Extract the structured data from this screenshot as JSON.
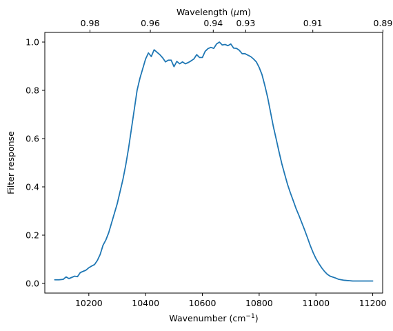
{
  "chart_data": {
    "type": "line",
    "xlabel": "Wavenumber (cm",
    "xlabel_sup": "−1",
    "xlabel_close": ")",
    "ylabel": "Filter response",
    "top_xlabel_pre": "Wavelength (",
    "top_xlabel_mu": "μ",
    "top_xlabel_post": "m)",
    "xlim": [
      10045,
      11235
    ],
    "ylim": [
      -0.04,
      1.04
    ],
    "xticks": [
      10200,
      10400,
      10600,
      10800,
      11000,
      11200
    ],
    "yticks": [
      0.0,
      0.2,
      0.4,
      0.6,
      0.8,
      1.0
    ],
    "top_xticks": [
      0.98,
      0.96,
      0.94,
      0.93,
      0.91,
      0.89
    ],
    "top_xtick_labels": [
      "0.98",
      "0.96",
      "0.94",
      "0.93",
      "0.91",
      "0.89"
    ],
    "line_color": "#1f77b4",
    "series": [
      {
        "x": [
          10080,
          10095,
          10110,
          10120,
          10130,
          10140,
          10150,
          10160,
          10170,
          10180,
          10190,
          10200,
          10210,
          10220,
          10230,
          10240,
          10250,
          10260,
          10270,
          10280,
          10290,
          10300,
          10310,
          10320,
          10330,
          10340,
          10350,
          10360,
          10370,
          10380,
          10390,
          10400,
          10410,
          10420,
          10430,
          10440,
          10450,
          10460,
          10470,
          10480,
          10490,
          10500,
          10510,
          10520,
          10530,
          10540,
          10550,
          10560,
          10570,
          10580,
          10590,
          10600,
          10610,
          10620,
          10630,
          10640,
          10650,
          10660,
          10670,
          10680,
          10690,
          10700,
          10710,
          10720,
          10730,
          10740,
          10750,
          10760,
          10770,
          10780,
          10790,
          10800,
          10810,
          10820,
          10830,
          10840,
          10850,
          10860,
          10870,
          10880,
          10890,
          10900,
          10910,
          10920,
          10930,
          10940,
          10950,
          10960,
          10970,
          10980,
          10990,
          11000,
          11010,
          11020,
          11030,
          11040,
          11050,
          11060,
          11070,
          11080,
          11090,
          11100,
          11110,
          11120,
          11130,
          11140,
          11150,
          11160,
          11180,
          11200
        ],
        "y": [
          0.015,
          0.015,
          0.017,
          0.027,
          0.02,
          0.025,
          0.03,
          0.028,
          0.045,
          0.05,
          0.055,
          0.065,
          0.072,
          0.078,
          0.095,
          0.12,
          0.158,
          0.18,
          0.21,
          0.25,
          0.29,
          0.33,
          0.38,
          0.43,
          0.49,
          0.56,
          0.64,
          0.72,
          0.8,
          0.85,
          0.89,
          0.93,
          0.955,
          0.94,
          0.968,
          0.958,
          0.948,
          0.935,
          0.918,
          0.925,
          0.925,
          0.898,
          0.92,
          0.91,
          0.918,
          0.91,
          0.915,
          0.922,
          0.93,
          0.948,
          0.936,
          0.936,
          0.962,
          0.973,
          0.978,
          0.974,
          0.992,
          1.0,
          0.988,
          0.99,
          0.985,
          0.992,
          0.975,
          0.974,
          0.966,
          0.952,
          0.952,
          0.946,
          0.94,
          0.93,
          0.918,
          0.895,
          0.865,
          0.82,
          0.77,
          0.71,
          0.65,
          0.598,
          0.545,
          0.495,
          0.452,
          0.41,
          0.375,
          0.343,
          0.31,
          0.282,
          0.252,
          0.222,
          0.19,
          0.157,
          0.128,
          0.103,
          0.083,
          0.065,
          0.05,
          0.038,
          0.03,
          0.026,
          0.022,
          0.017,
          0.015,
          0.013,
          0.012,
          0.011,
          0.01,
          0.01,
          0.01,
          0.01,
          0.01,
          0.01
        ]
      }
    ]
  }
}
